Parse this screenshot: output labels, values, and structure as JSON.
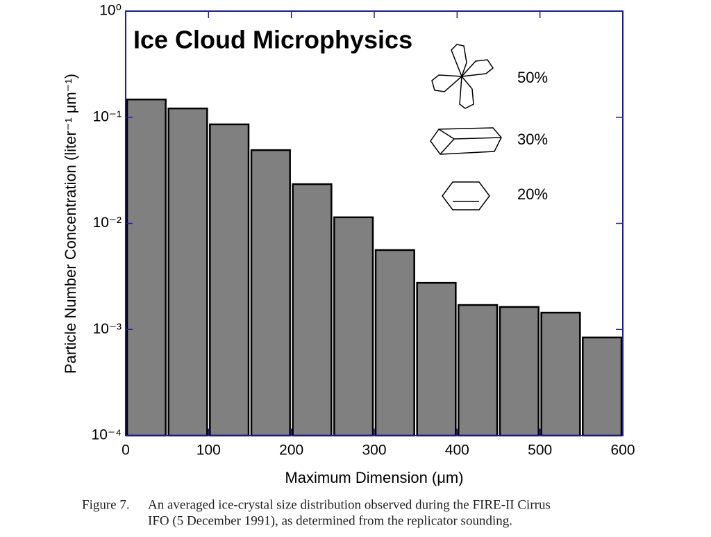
{
  "chart_data": {
    "type": "histogram",
    "title": "Ice Cloud Microphysics",
    "xlabel": "Maximum Dimension (μm)",
    "ylabel": "Particle Number Concentration (liter⁻¹ μm⁻¹)",
    "bins": [
      0,
      50,
      100,
      150,
      200,
      250,
      300,
      350,
      400,
      450,
      500,
      550,
      600
    ],
    "values": [
      0.147,
      0.121,
      0.0857,
      0.049,
      0.0234,
      0.0114,
      0.0056,
      0.00275,
      0.0017,
      0.00163,
      0.00144,
      0.00084
    ],
    "color": "#808080",
    "frame_color": "#1a1aa6",
    "xlim": [
      0,
      600
    ],
    "xticks": [
      0,
      100,
      200,
      300,
      400,
      500,
      600
    ],
    "ylim": [
      0.0001,
      1
    ],
    "log_y": true,
    "yticks": [
      {
        "value": 1,
        "label": "10⁰"
      },
      {
        "value": 0.1,
        "label": "10⁻¹"
      },
      {
        "value": 0.01,
        "label": "10⁻²"
      },
      {
        "value": 0.001,
        "label": "10⁻³"
      },
      {
        "value": 0.0001,
        "label": "10⁻⁴"
      }
    ],
    "annotations": [
      "50%",
      "30%",
      "20%"
    ],
    "caption": [
      "Figure 7.",
      "An averaged ice-crystal size distribution observed during the FIRE-II Cirrus",
      "IFO (5 December 1991), as determined from the replicator sounding."
    ]
  }
}
